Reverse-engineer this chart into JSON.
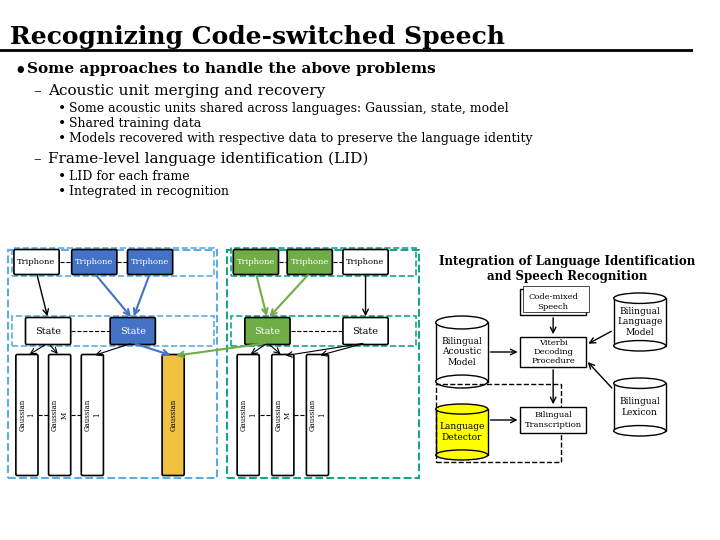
{
  "title": "Recognizing Code-switched Speech",
  "bg_color": "#ffffff",
  "title_color": "#000000",
  "bullet1": "Some approaches to handle the above problems",
  "sub1": "Acoustic unit merging and recovery",
  "sub1_b1": "Some acoustic units shared across languages: Gaussian, state, model",
  "sub1_b2": "Shared training data",
  "sub1_b3": "Models recovered with respective data to preserve the language identity",
  "sub2": "Frame-level language identification (LID)",
  "sub2_b1": "LID for each frame",
  "sub2_b2": "Integrated in recognition",
  "diagram_title": "Integration of Language Identification\nand Speech Recognition",
  "blue_color": "#4472C4",
  "green_color": "#70AD47",
  "yellow_color": "#FFFF00",
  "teal_border": "#17A589",
  "light_blue_border": "#5DADE2",
  "shared_gauss_color": "#F0C040"
}
